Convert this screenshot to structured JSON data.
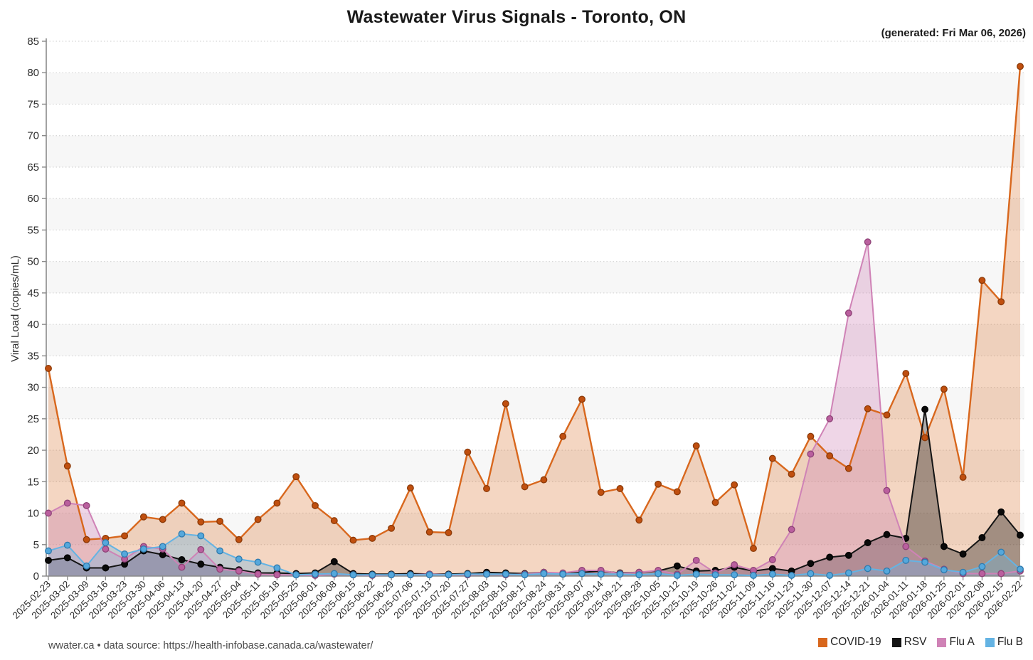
{
  "header": {
    "title": "Wastewater Virus Signals - Toronto, ON",
    "generated": "(generated: Fri Mar 06, 2026)"
  },
  "footer": {
    "credit": "wwater.ca • data source: https://health-infobase.canada.ca/wastewater/"
  },
  "chart_data": {
    "type": "area",
    "title": "Wastewater Virus Signals - Toronto, ON",
    "xlabel": "",
    "ylabel": "Viral Load (copies/mL)",
    "ylim": [
      0,
      85
    ],
    "ytick_step": 5,
    "grid": "dotted horizontal gridlines with alternating light-gray bands",
    "legend_position": "bottom-right",
    "background_band_color": "#f7f7f7",
    "gridline_color": "#d8d8d8",
    "axis_color": "#8a8a8a",
    "tick_label_color": "#2e2e2e",
    "categories": [
      "2025-02-23",
      "2025-03-02",
      "2025-03-09",
      "2025-03-16",
      "2025-03-23",
      "2025-03-30",
      "2025-04-06",
      "2025-04-13",
      "2025-04-20",
      "2025-04-27",
      "2025-05-04",
      "2025-05-11",
      "2025-05-18",
      "2025-05-25",
      "2025-06-01",
      "2025-06-08",
      "2025-06-15",
      "2025-06-22",
      "2025-06-29",
      "2025-07-06",
      "2025-07-13",
      "2025-07-20",
      "2025-07-27",
      "2025-08-03",
      "2025-08-10",
      "2025-08-17",
      "2025-08-24",
      "2025-08-31",
      "2025-09-07",
      "2025-09-14",
      "2025-09-21",
      "2025-09-28",
      "2025-10-05",
      "2025-10-12",
      "2025-10-19",
      "2025-10-26",
      "2025-11-02",
      "2025-11-09",
      "2025-11-16",
      "2025-11-23",
      "2025-11-30",
      "2025-12-07",
      "2025-12-14",
      "2025-12-21",
      "2026-01-04",
      "2026-01-11",
      "2026-01-18",
      "2026-01-25",
      "2026-02-01",
      "2026-02-08",
      "2026-02-15",
      "2026-02-22"
    ],
    "series": [
      {
        "name": "COVID-19",
        "color": "#D8671D",
        "marker_fill": "#C04F0F",
        "marker_stroke": "#8C3A08",
        "fill_opacity": 0.27,
        "values": [
          33.0,
          17.5,
          5.8,
          6.0,
          6.4,
          9.4,
          9.0,
          11.6,
          8.6,
          8.7,
          5.8,
          9.0,
          11.6,
          15.8,
          11.2,
          8.8,
          5.7,
          6.0,
          7.6,
          14.0,
          7.0,
          6.9,
          19.7,
          13.9,
          27.4,
          14.2,
          15.3,
          22.2,
          28.1,
          13.3,
          13.9,
          8.9,
          14.6,
          13.4,
          20.7,
          11.7,
          14.5,
          4.4,
          18.7,
          16.2,
          22.2,
          19.1,
          17.1,
          26.6,
          25.6,
          32.2,
          22.0,
          29.7,
          15.7,
          47.0,
          43.6,
          81.0
        ]
      },
      {
        "name": "RSV",
        "color": "#141414",
        "marker_fill": "#0a0a0a",
        "marker_stroke": "#000000",
        "fill_opacity": 0.35,
        "values": [
          2.5,
          2.9,
          1.3,
          1.3,
          1.9,
          4.0,
          3.4,
          2.6,
          1.9,
          1.4,
          1.0,
          0.5,
          0.5,
          0.4,
          0.5,
          2.3,
          0.4,
          0.3,
          0.3,
          0.4,
          0.3,
          0.3,
          0.4,
          0.6,
          0.5,
          0.4,
          0.6,
          0.3,
          0.6,
          0.8,
          0.5,
          0.6,
          0.8,
          1.6,
          0.8,
          0.9,
          1.4,
          0.8,
          1.2,
          0.8,
          2.0,
          3.0,
          3.3,
          5.3,
          6.6,
          6.0,
          26.5,
          4.7,
          3.5,
          6.1,
          10.2,
          6.5
        ]
      },
      {
        "name": "Flu A",
        "color": "#CF82B6",
        "marker_fill": "#BA5F9E",
        "marker_stroke": "#8E4377",
        "fill_opacity": 0.33,
        "values": [
          10.0,
          11.6,
          11.2,
          4.3,
          2.7,
          4.7,
          4.3,
          1.4,
          4.2,
          1.1,
          0.8,
          0.3,
          0.2,
          0.2,
          0.1,
          0.3,
          0.2,
          0.1,
          0.2,
          0.2,
          0.3,
          0.2,
          0.2,
          0.3,
          0.2,
          0.3,
          0.6,
          0.5,
          0.9,
          0.9,
          0.4,
          0.6,
          0.9,
          0.3,
          2.5,
          0.5,
          1.8,
          0.9,
          2.6,
          7.4,
          19.4,
          25.0,
          41.8,
          53.1,
          13.6,
          4.7,
          2.4,
          1.1,
          0.4,
          0.4,
          0.4,
          0.8
        ]
      },
      {
        "name": "Flu B",
        "color": "#64B3E3",
        "marker_fill": "#55A8DC",
        "marker_stroke": "#2F7AAD",
        "fill_opacity": 0.33,
        "values": [
          4.0,
          4.9,
          1.6,
          5.3,
          3.5,
          4.3,
          4.7,
          6.7,
          6.4,
          4.0,
          2.7,
          2.2,
          1.3,
          0.2,
          0.3,
          0.4,
          0.2,
          0.2,
          0.2,
          0.2,
          0.2,
          0.2,
          0.3,
          0.3,
          0.3,
          0.2,
          0.4,
          0.3,
          0.4,
          0.3,
          0.3,
          0.2,
          0.4,
          0.1,
          0.3,
          0.2,
          0.2,
          0.1,
          0.3,
          0.1,
          0.4,
          0.1,
          0.5,
          1.2,
          0.8,
          2.5,
          2.2,
          1.0,
          0.6,
          1.5,
          3.8,
          1.1
        ]
      }
    ]
  }
}
